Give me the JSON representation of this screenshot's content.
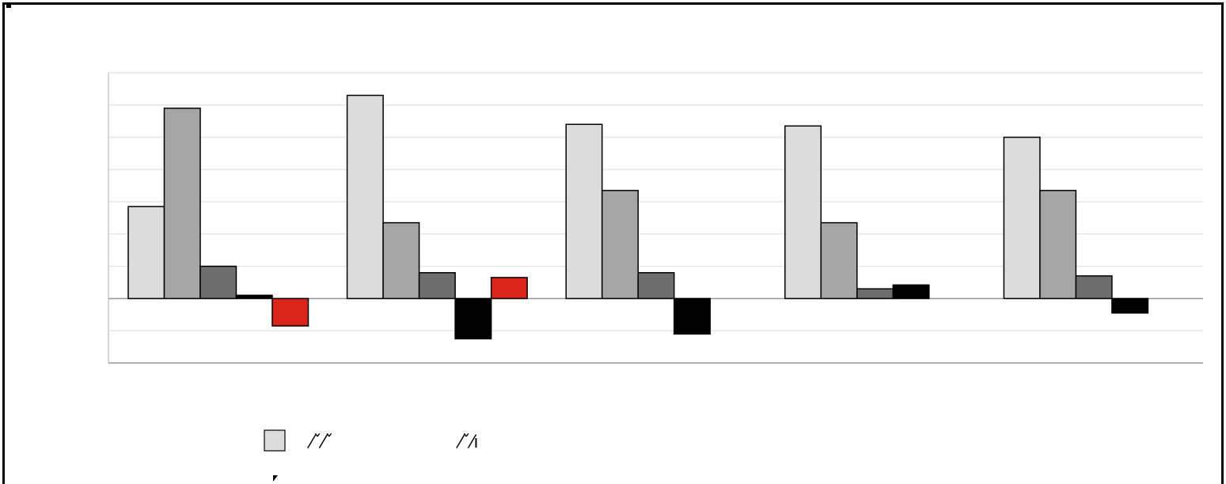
{
  "chart_data": {
    "type": "bar",
    "categories": [
      "",
      "",
      "",
      "",
      ""
    ],
    "series": [
      {
        "color": "#dcdcdc",
        "values": [
          2.85,
          6.3,
          5.4,
          5.35,
          5.0
        ]
      },
      {
        "color": "#a6a6a6",
        "values": [
          5.9,
          2.35,
          3.35,
          2.35,
          3.35
        ]
      },
      {
        "color": "#6d6d6d",
        "values": [
          1.0,
          0.8,
          0.8,
          0.3,
          0.7
        ]
      },
      {
        "color": "#000000",
        "values": [
          0.1,
          -1.25,
          -1.1,
          0.42,
          -0.45
        ]
      },
      {
        "color": "#d9251c",
        "values": [
          -0.85,
          0.65,
          0.0,
          0.0,
          0.0
        ]
      }
    ],
    "ylim": [
      -2,
      7
    ],
    "gridlines": [
      -2,
      -1,
      0,
      1,
      2,
      3,
      4,
      5,
      6,
      7
    ],
    "grid": true,
    "legend": {
      "placement": "bottom",
      "entries": [
        {
          "label": "⁄ˇ⁄ˇ",
          "color": "#dcdcdc"
        },
        {
          "label": "⁄ˇ⁄ı",
          "color": "none"
        }
      ]
    }
  }
}
